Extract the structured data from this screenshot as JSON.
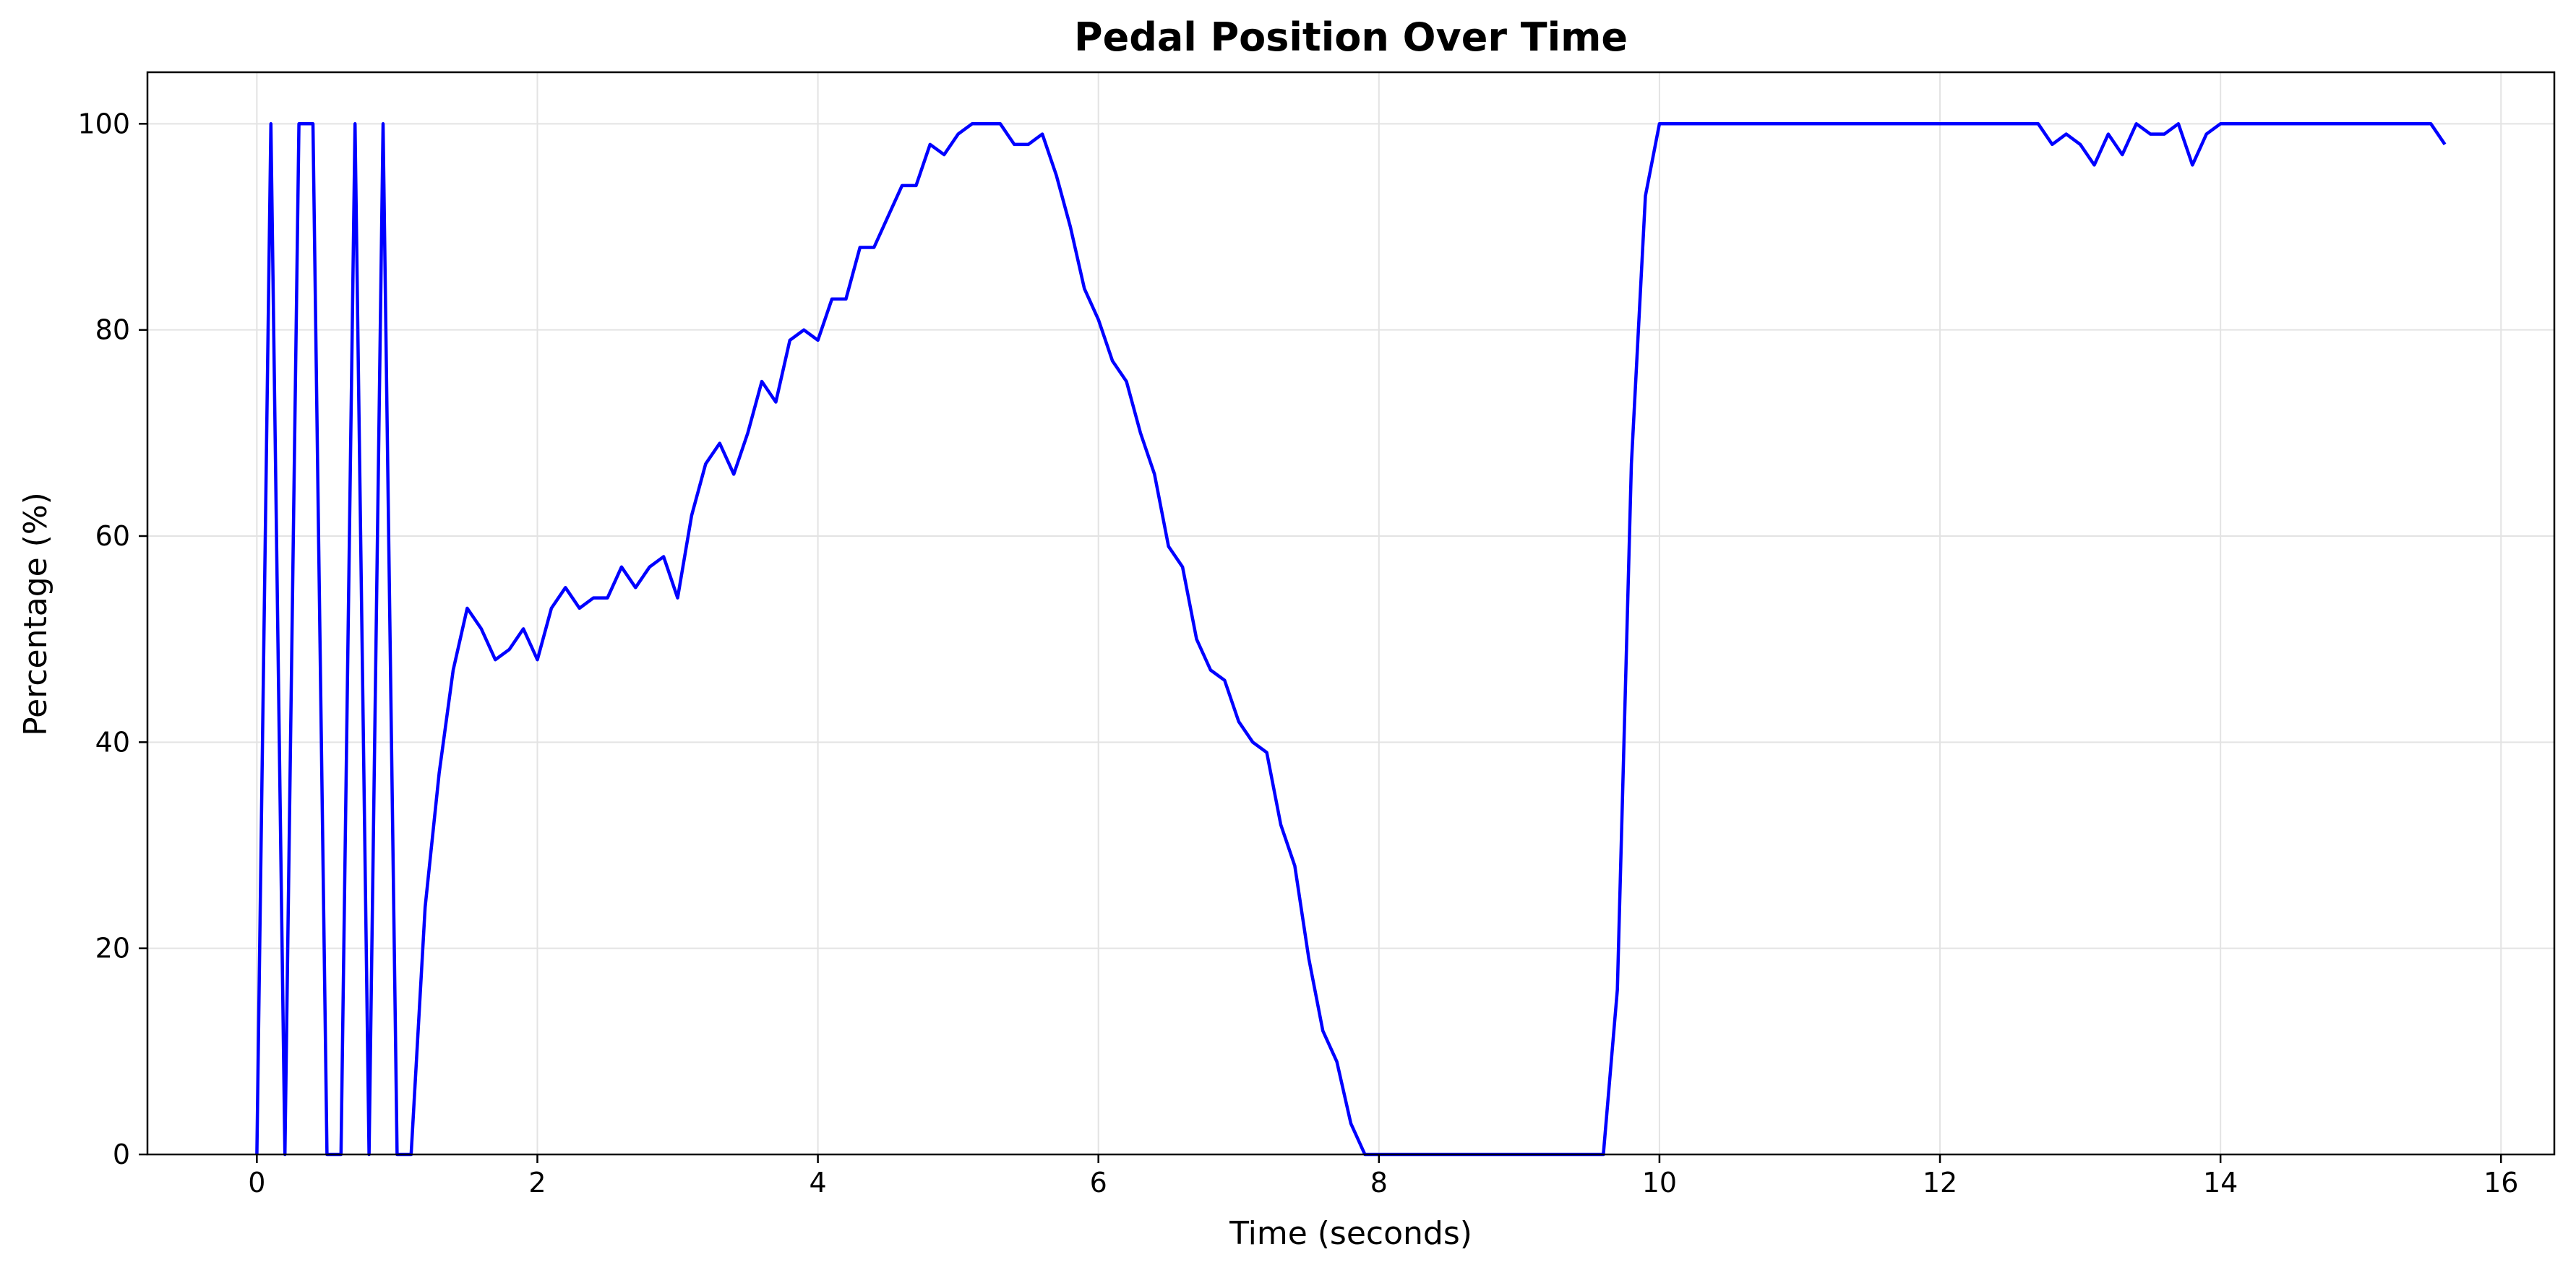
{
  "chart_data": {
    "type": "line",
    "title": "Pedal Position Over Time",
    "xlabel": "Time (seconds)",
    "ylabel": "Percentage (%)",
    "xlim": [
      -0.78,
      16.38
    ],
    "ylim": [
      0,
      105
    ],
    "xticks": [
      0,
      2,
      4,
      6,
      8,
      10,
      12,
      14,
      16
    ],
    "yticks": [
      0,
      20,
      40,
      60,
      80,
      100
    ],
    "grid": true,
    "series": [
      {
        "color": "#0000ff",
        "x": [
          0.0,
          0.1,
          0.2,
          0.3,
          0.4,
          0.5,
          0.6,
          0.7,
          0.8,
          0.9,
          1.0,
          1.1,
          1.2,
          1.3,
          1.4,
          1.5,
          1.6,
          1.7,
          1.8,
          1.9,
          2.0,
          2.1,
          2.2,
          2.3,
          2.4,
          2.5,
          2.6,
          2.7,
          2.8,
          2.9,
          3.0,
          3.1,
          3.2,
          3.3,
          3.4,
          3.5,
          3.6,
          3.7,
          3.8,
          3.9,
          4.0,
          4.1,
          4.2,
          4.3,
          4.4,
          4.5,
          4.6,
          4.7,
          4.8,
          4.9,
          5.0,
          5.1,
          5.2,
          5.3,
          5.4,
          5.5,
          5.6,
          5.7,
          5.8,
          5.9,
          6.0,
          6.1,
          6.2,
          6.3,
          6.4,
          6.5,
          6.6,
          6.7,
          6.8,
          6.9,
          7.0,
          7.1,
          7.2,
          7.3,
          7.4,
          7.5,
          7.6,
          7.7,
          7.8,
          7.9,
          8.0,
          9.6,
          9.7,
          9.8,
          9.9,
          10.0,
          10.1,
          12.7,
          12.8,
          12.9,
          13.0,
          13.1,
          13.2,
          13.3,
          13.4,
          13.5,
          13.6,
          13.7,
          13.8,
          13.9,
          14.0,
          15.5,
          15.6
        ],
        "y": [
          0,
          100,
          0,
          100,
          100,
          0,
          0,
          100,
          0,
          100,
          0,
          0,
          24,
          37,
          47,
          53,
          51,
          48,
          49,
          51,
          48,
          53,
          55,
          53,
          54,
          54,
          57,
          55,
          57,
          58,
          54,
          62,
          67,
          69,
          66,
          70,
          75,
          73,
          79,
          80,
          79,
          83,
          83,
          88,
          88,
          91,
          94,
          94,
          98,
          97,
          99,
          100,
          100,
          100,
          98,
          98,
          99,
          95,
          90,
          84,
          81,
          77,
          75,
          70,
          66,
          59,
          57,
          50,
          47,
          46,
          42,
          40,
          39,
          32,
          28,
          19,
          12,
          9,
          3,
          0,
          0,
          0,
          16,
          67,
          93,
          100,
          100,
          100,
          98,
          99,
          98,
          96,
          99,
          97,
          100,
          99,
          99,
          100,
          96,
          99,
          100,
          100,
          98
        ]
      }
    ]
  }
}
